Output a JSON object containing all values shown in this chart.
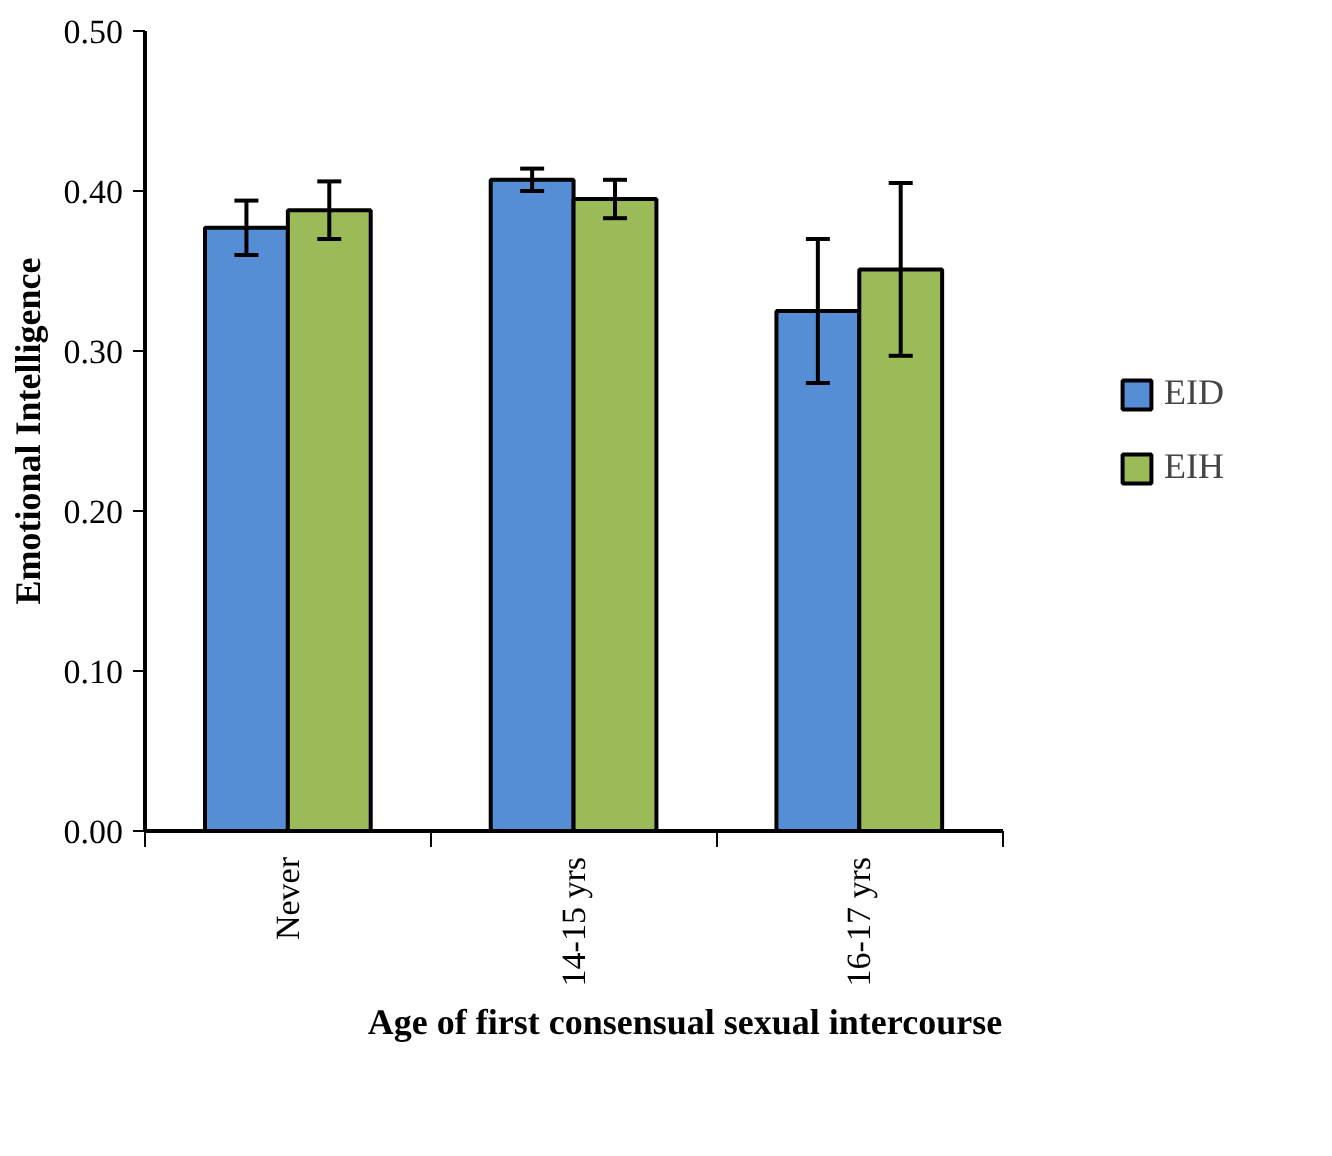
{
  "chart_data": {
    "type": "bar",
    "xlabel": "Age of first consensual sexual intercourse",
    "ylabel": "Emotional Intelligence",
    "categories": [
      "Never",
      "14-15 yrs",
      "16-17 yrs"
    ],
    "series": [
      {
        "name": "EID",
        "color": "#558ed5",
        "values": [
          0.377,
          0.407,
          0.325
        ],
        "errors": [
          0.017,
          0.007,
          0.045
        ]
      },
      {
        "name": "EIH",
        "color": "#9bbb59",
        "values": [
          0.388,
          0.395,
          0.351
        ],
        "errors": [
          0.018,
          0.012,
          0.054
        ]
      }
    ],
    "ylim": [
      0,
      0.5
    ],
    "yticks": [
      {
        "value": 0,
        "label": "0.00"
      },
      {
        "value": 0.1,
        "label": "0.10"
      },
      {
        "value": 0.2,
        "label": "0.20"
      },
      {
        "value": 0.3,
        "label": "0.30"
      },
      {
        "value": 0.4,
        "label": "0.40"
      },
      {
        "value": 0.5,
        "label": "0.50"
      }
    ],
    "grid": false,
    "legend": "right"
  }
}
